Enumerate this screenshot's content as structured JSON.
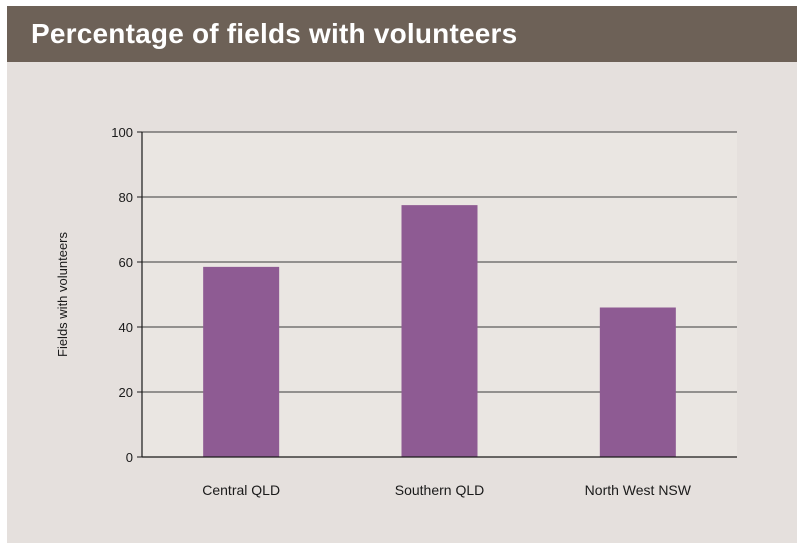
{
  "chart_data": {
    "type": "bar",
    "title": "Percentage of fields with volunteers",
    "ylabel": "Fields with volunteers",
    "xlabel": "",
    "categories": [
      "Central QLD",
      "Southern QLD",
      "North West NSW"
    ],
    "values": [
      58.5,
      77.5,
      46
    ],
    "ylim": [
      0,
      100
    ],
    "yticks": [
      0,
      20,
      40,
      60,
      80,
      100
    ],
    "grid": true,
    "colors": {
      "bar": "#8e5b93",
      "header_bg": "#6d6157",
      "panel_bg": "#e5e0dd",
      "plot_bg": "#eae6e2"
    }
  }
}
